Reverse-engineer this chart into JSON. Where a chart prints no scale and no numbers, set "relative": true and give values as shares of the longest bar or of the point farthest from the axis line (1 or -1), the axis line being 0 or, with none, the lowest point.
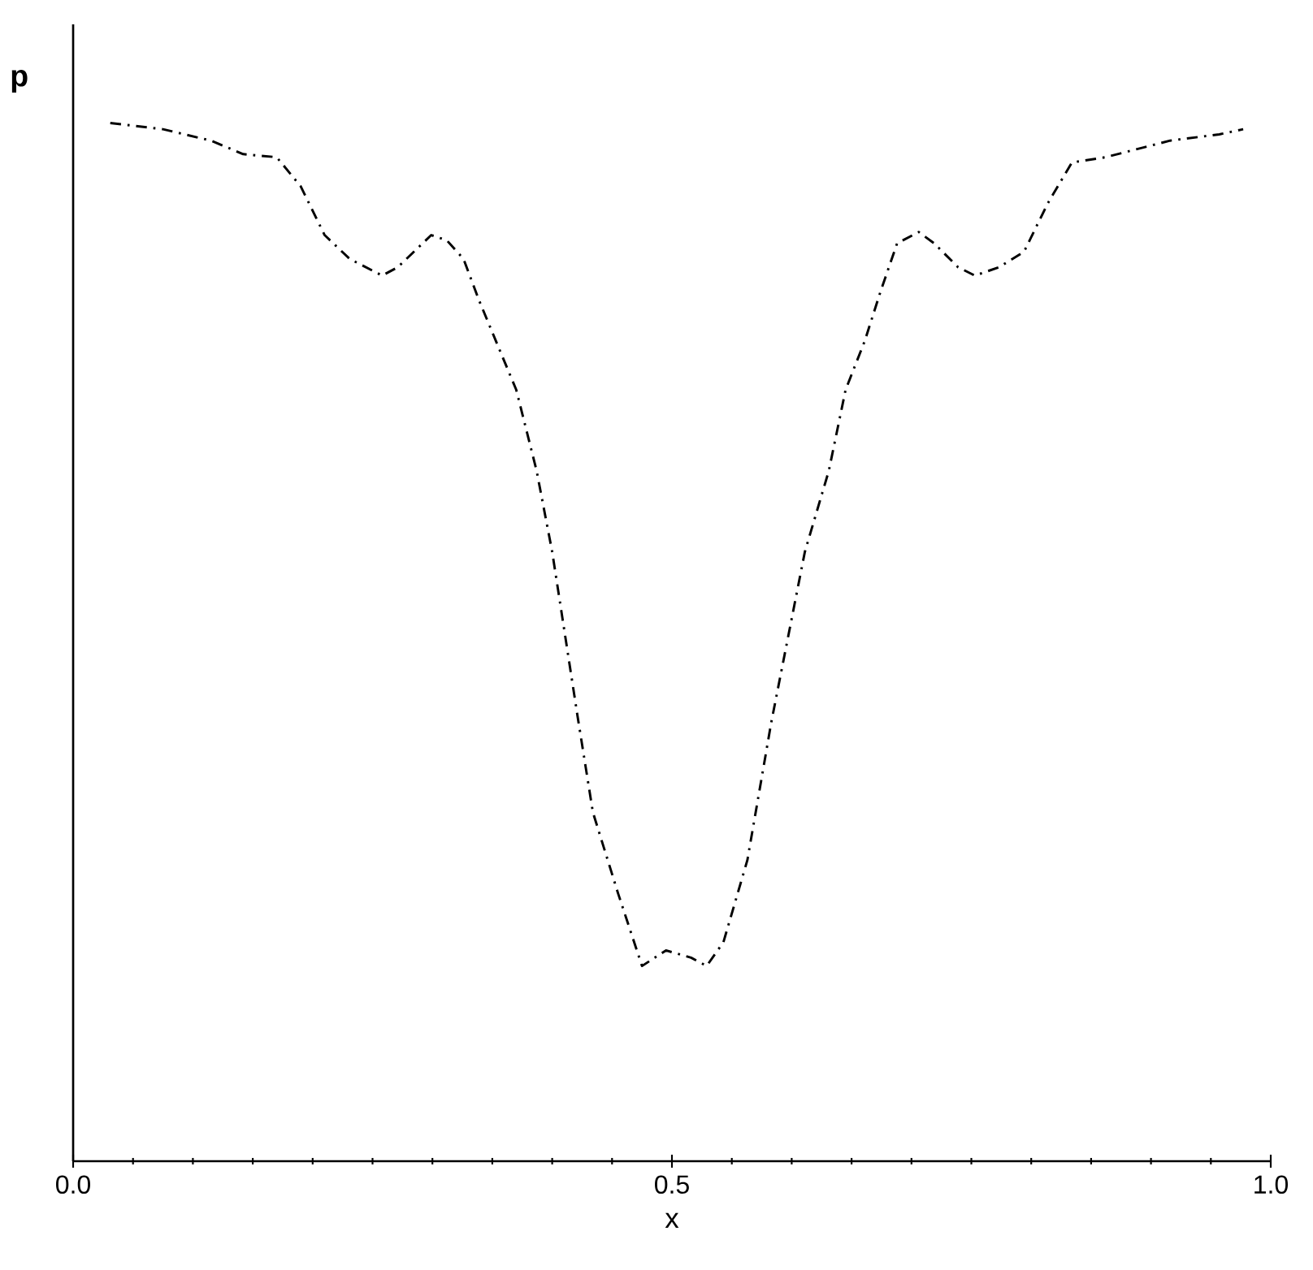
{
  "chart_data": {
    "type": "line",
    "xlabel": "x",
    "ylabel": "p",
    "relative": true,
    "line_style": "dashed",
    "xlim": [
      0,
      1
    ],
    "xticks": [
      {
        "value": 0,
        "label": "0.0"
      },
      {
        "value": 0.5,
        "label": "0.5"
      },
      {
        "value": 1,
        "label": "1.0"
      }
    ],
    "series": [
      {
        "color": "#000000",
        "x": [
          0.031,
          0.075,
          0.115,
          0.142,
          0.17,
          0.19,
          0.21,
          0.231,
          0.258,
          0.271,
          0.299,
          0.312,
          0.326,
          0.339,
          0.353,
          0.37,
          0.387,
          0.4,
          0.421,
          0.434,
          0.455,
          0.475,
          0.495,
          0.516,
          0.529,
          0.543,
          0.563,
          0.583,
          0.611,
          0.631,
          0.645,
          0.661,
          0.674,
          0.688,
          0.706,
          0.719,
          0.739,
          0.753,
          0.773,
          0.794,
          0.814,
          0.834,
          0.862,
          0.889,
          0.916,
          0.957,
          0.977
        ],
        "values": [
          1.0,
          0.994,
          0.983,
          0.97,
          0.967,
          0.939,
          0.892,
          0.869,
          0.853,
          0.861,
          0.892,
          0.887,
          0.869,
          0.829,
          0.79,
          0.743,
          0.665,
          0.587,
          0.43,
          0.336,
          0.258,
          0.188,
          0.203,
          0.196,
          0.188,
          0.211,
          0.29,
          0.423,
          0.587,
          0.665,
          0.743,
          0.79,
          0.837,
          0.884,
          0.895,
          0.884,
          0.861,
          0.853,
          0.861,
          0.876,
          0.923,
          0.962,
          0.967,
          0.975,
          0.983,
          0.989,
          0.994
        ]
      }
    ]
  }
}
